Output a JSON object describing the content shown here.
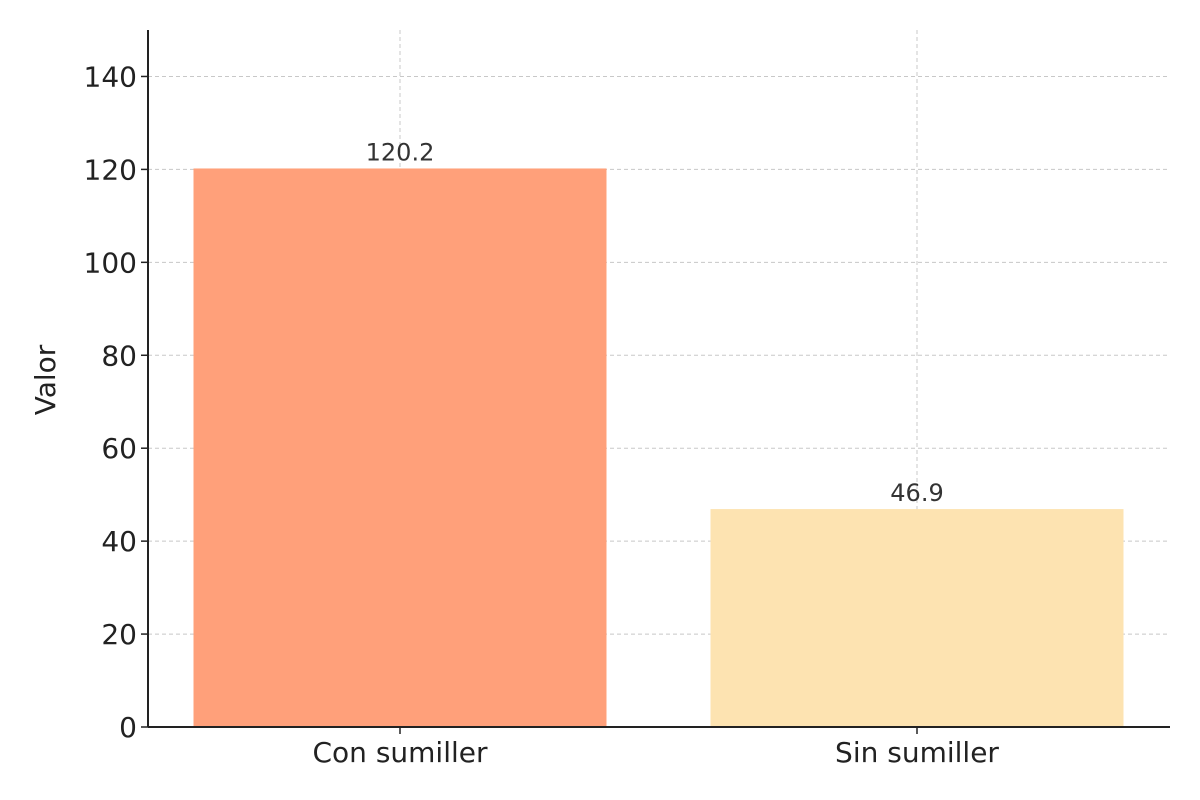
{
  "chart_data": {
    "type": "bar",
    "categories": [
      "Con sumiller",
      "Sin sumiller"
    ],
    "values": [
      120.2,
      46.9
    ],
    "data_labels": [
      "120.2",
      "46.9"
    ],
    "colors": [
      "#ffa07a",
      "#fde3b1"
    ],
    "title": "",
    "xlabel": "",
    "ylabel": "Valor",
    "ylim": [
      0,
      150
    ],
    "yticks": [
      0,
      20,
      40,
      60,
      80,
      100,
      120,
      140
    ],
    "grid": true,
    "legend": "none"
  }
}
